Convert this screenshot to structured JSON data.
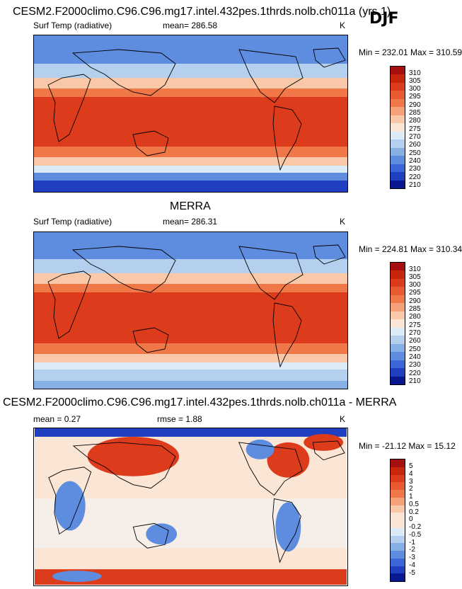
{
  "header": {
    "title": "CESM2.F2000climo.C96.C96.mg17.intel.432pes.1thrds.nolb.ch011a (yrs 1)",
    "season": "DJF"
  },
  "panels": [
    {
      "variable": "Surf Temp (radiative)",
      "mean_label": "mean= 286.58",
      "units": "K",
      "minmax": "Min = 232.01 Max = 310.59"
    },
    {
      "section_title": "MERRA",
      "variable": "Surf Temp (radiative)",
      "mean_label": "mean= 286.31",
      "units": "K",
      "minmax": "Min = 224.81 Max = 310.34"
    },
    {
      "section_title": "CESM2.F2000climo.C96.C96.mg17.intel.432pes.1thrds.nolb.ch011a - MERRA",
      "mean_label": "mean =   0.27",
      "rmse_label": "rmse =   1.88",
      "units": "K",
      "minmax": "Min = -21.12 Max =  15.12"
    }
  ],
  "colorbars": {
    "temperature": {
      "levels": [
        "310",
        "305",
        "300",
        "295",
        "290",
        "285",
        "280",
        "275",
        "270",
        "260",
        "250",
        "240",
        "230",
        "220",
        "210"
      ],
      "colors": [
        "#a50f0f",
        "#c8260c",
        "#dc3c1c",
        "#e85a30",
        "#f07848",
        "#f4a07a",
        "#f8c8a8",
        "#fbe6d6",
        "#dce9f6",
        "#b4d0ee",
        "#86afe3",
        "#5e8de0",
        "#3a66d8",
        "#1f3fc0",
        "#0a1890"
      ]
    },
    "difference": {
      "levels": [
        "5",
        "4",
        "3",
        "2",
        "1",
        "0.5",
        "0.2",
        "0",
        "-0.2",
        "-0.5",
        "-1",
        "-2",
        "-3",
        "-4",
        "-5"
      ],
      "colors": [
        "#a50f0f",
        "#c8260c",
        "#dc3c1c",
        "#e85a30",
        "#f07848",
        "#f4a07a",
        "#f8c8a8",
        "#fbe6d6",
        "#fbe6d6",
        "#dce9f6",
        "#b4d0ee",
        "#86afe3",
        "#5e8de0",
        "#3a66d8",
        "#1f3fc0",
        "#0a1890"
      ]
    }
  }
}
